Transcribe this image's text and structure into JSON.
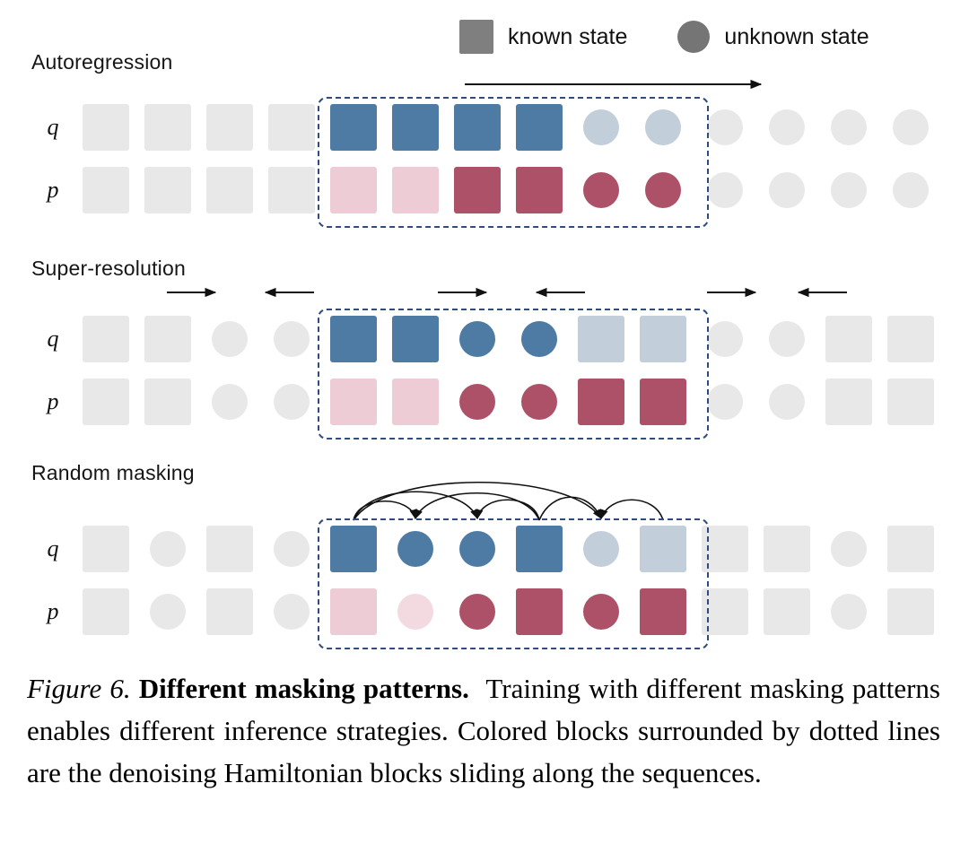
{
  "legend": {
    "known_label": "known state",
    "unknown_label": "unknown state"
  },
  "palette": {
    "gray": "#e8e8e8",
    "legend_square": "#7f7f7f",
    "legend_circle": "#757575",
    "blue": "#4d7ba4",
    "lightblue": "#c3cedb",
    "pink": "#edccd6",
    "lightpink": "#f3dae1",
    "red": "#ad5168",
    "block_border": "#2f4b80"
  },
  "sections": [
    {
      "title": "Autoregression",
      "rows": [
        {
          "label": "q",
          "cells": [
            "sq-gray",
            "sq-gray",
            "sq-gray",
            "sq-gray",
            "sq-blue",
            "sq-blue",
            "sq-blue",
            "sq-blue",
            "ci-lightblue",
            "ci-lightblue",
            "ci-gray",
            "ci-gray",
            "ci-gray",
            "ci-gray"
          ]
        },
        {
          "label": "p",
          "cells": [
            "sq-gray",
            "sq-gray",
            "sq-gray",
            "sq-gray",
            "sq-pink",
            "sq-pink",
            "sq-red",
            "sq-red",
            "ci-red",
            "ci-red",
            "ci-gray",
            "ci-gray",
            "ci-gray",
            "ci-gray"
          ]
        }
      ]
    },
    {
      "title": "Super-resolution",
      "rows": [
        {
          "label": "q",
          "cells": [
            "sq-gray",
            "sq-gray",
            "ci-gray",
            "ci-gray",
            "sq-blue",
            "sq-blue",
            "ci-blue",
            "ci-blue",
            "sq-lightblue",
            "sq-lightblue",
            "ci-gray",
            "ci-gray",
            "sq-gray",
            "sq-gray"
          ]
        },
        {
          "label": "p",
          "cells": [
            "sq-gray",
            "sq-gray",
            "ci-gray",
            "ci-gray",
            "sq-pink",
            "sq-pink",
            "ci-red",
            "ci-red",
            "sq-red",
            "sq-red",
            "ci-gray",
            "ci-gray",
            "sq-gray",
            "sq-gray"
          ]
        }
      ]
    },
    {
      "title": "Random masking",
      "rows": [
        {
          "label": "q",
          "cells": [
            "sq-gray",
            "ci-gray",
            "sq-gray",
            "ci-gray",
            "sq-blue",
            "ci-blue",
            "ci-blue",
            "sq-blue",
            "ci-lightblue",
            "sq-lightblue",
            "sq-gray",
            "sq-gray",
            "ci-gray",
            "sq-gray"
          ]
        },
        {
          "label": "p",
          "cells": [
            "sq-gray",
            "ci-gray",
            "sq-gray",
            "ci-gray",
            "sq-pink",
            "ci-lightpink",
            "ci-red",
            "sq-red",
            "ci-red",
            "sq-red",
            "sq-gray",
            "sq-gray",
            "ci-gray",
            "sq-gray"
          ]
        }
      ]
    }
  ],
  "caption": {
    "figure_label": "Figure 6.",
    "title": "Different masking patterns.",
    "body": "Training with different masking patterns enables different inference strategies. Colored blocks surrounded by dotted lines are the denoising Hamiltonian blocks sliding along the sequences."
  }
}
